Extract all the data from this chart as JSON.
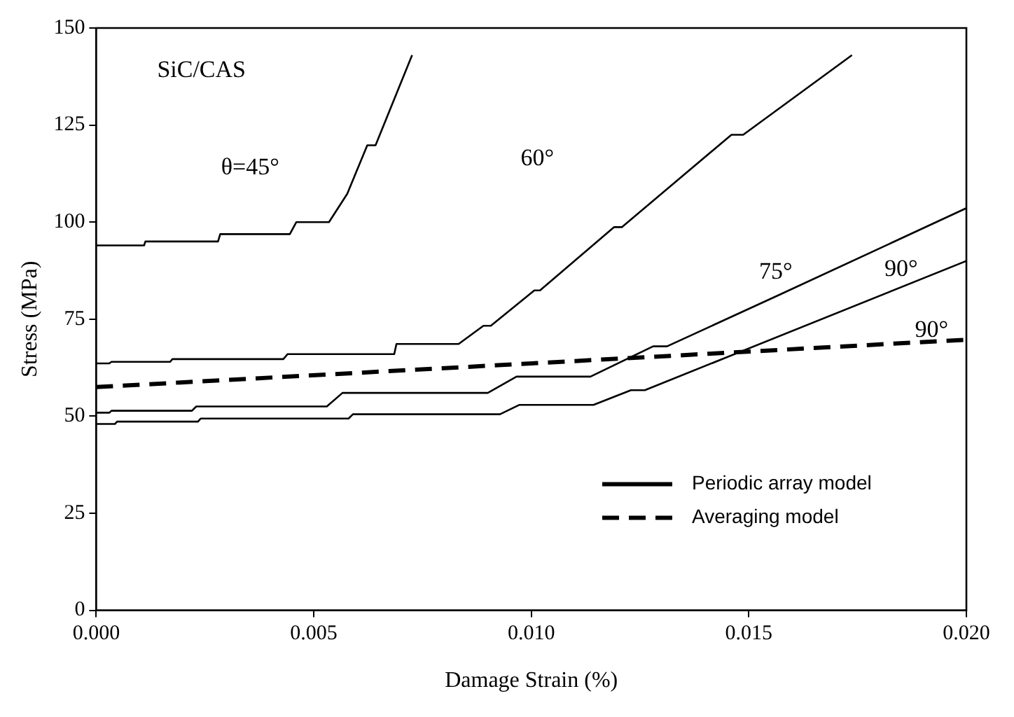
{
  "chart_data": {
    "type": "line",
    "xlabel": "Damage Strain (%)",
    "ylabel": "Stress (MPa)",
    "xlim": [
      0,
      0.02
    ],
    "ylim": [
      0,
      150
    ],
    "xticks": [
      {
        "value": 0,
        "label": "0.000"
      },
      {
        "value": 0.005,
        "label": "0.005"
      },
      {
        "value": 0.01,
        "label": "0.010"
      },
      {
        "value": 0.015,
        "label": "0.015"
      },
      {
        "value": 0.02,
        "label": "0.020"
      }
    ],
    "yticks": [
      0,
      25,
      50,
      75,
      100,
      125,
      150
    ],
    "grid": false,
    "legend": "bottom right",
    "marker": "none",
    "annotations": [
      "SiC/CAS",
      "θ=45°",
      "60°",
      "75°",
      "90°",
      "90°"
    ],
    "series": [
      {
        "color": "#000000",
        "line_style": "solid",
        "x": [
          0,
          0.0011,
          0.00113,
          0.0028,
          0.00285,
          0.00445,
          0.0046,
          0.00535,
          0.00577,
          0.00623,
          0.00642,
          0.00726
        ],
        "values": [
          94,
          94,
          95,
          95,
          96.9,
          96.9,
          100,
          100,
          107.3,
          119.8,
          119.8,
          143
        ]
      },
      {
        "color": "#000000",
        "line_style": "solid",
        "x": [
          0,
          0.0003,
          0.00035,
          0.0017,
          0.00175,
          0.0043,
          0.0044,
          0.00685,
          0.0069,
          0.00833,
          0.0089,
          0.00907,
          0.01007,
          0.0102,
          0.0119,
          0.01208,
          0.0146,
          0.01487,
          0.01737
        ],
        "values": [
          63.6,
          63.6,
          64,
          64,
          64.7,
          64.7,
          66,
          66,
          68.6,
          68.6,
          73.3,
          73.3,
          82.4,
          82.4,
          98.7,
          98.7,
          122.5,
          122.5,
          143
        ]
      },
      {
        "color": "#000000",
        "line_style": "solid",
        "x": [
          0,
          0.0003,
          0.00035,
          0.0022,
          0.0023,
          0.0053,
          0.00566,
          0.009,
          0.00966,
          0.01136,
          0.0128,
          0.01312,
          0.01565,
          0.02
        ],
        "values": [
          50.9,
          50.9,
          51.4,
          51.4,
          52.5,
          52.5,
          56,
          56,
          60.2,
          60.2,
          68,
          68,
          81,
          103.6
        ]
      },
      {
        "name": "Periodic array model",
        "color": "#000000",
        "line_style": "solid",
        "x": [
          0,
          0.00043,
          0.00048,
          0.00234,
          0.0024,
          0.0058,
          0.0059,
          0.00928,
          0.00972,
          0.01143,
          0.01229,
          0.01261,
          0.02
        ],
        "values": [
          48,
          48,
          48.6,
          48.6,
          49.4,
          49.4,
          50.5,
          50.5,
          52.9,
          52.9,
          56.7,
          56.7,
          90
        ]
      },
      {
        "name": "Averaging model",
        "color": "#000000",
        "line_style": "dashed",
        "x": [
          0,
          0.02
        ],
        "values": [
          57.5,
          69.7
        ]
      }
    ]
  }
}
